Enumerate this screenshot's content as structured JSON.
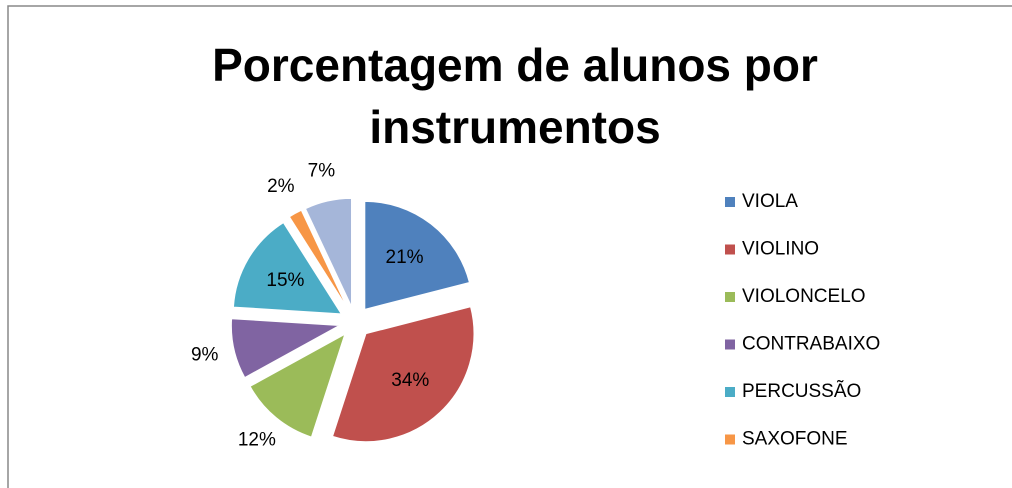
{
  "chart_data": {
    "type": "pie",
    "title": "Porcentagem de alunos por instrumentos",
    "categories": [
      "VIOLA",
      "VIOLINO",
      "VIOLONCELO",
      "CONTRABAIXO",
      "PERCUSSÃO",
      "SAXOFONE",
      null
    ],
    "values": [
      21,
      34,
      12,
      9,
      15,
      2,
      7
    ],
    "value_labels": [
      "21%",
      "34%",
      "12%",
      "9%",
      "15%",
      "2%",
      "7%"
    ],
    "colors": [
      "#4f81bd",
      "#c0504d",
      "#9bbb59",
      "#8064a2",
      "#4bacc6",
      "#f79646",
      "#a5b6d9"
    ],
    "legend": "right"
  }
}
